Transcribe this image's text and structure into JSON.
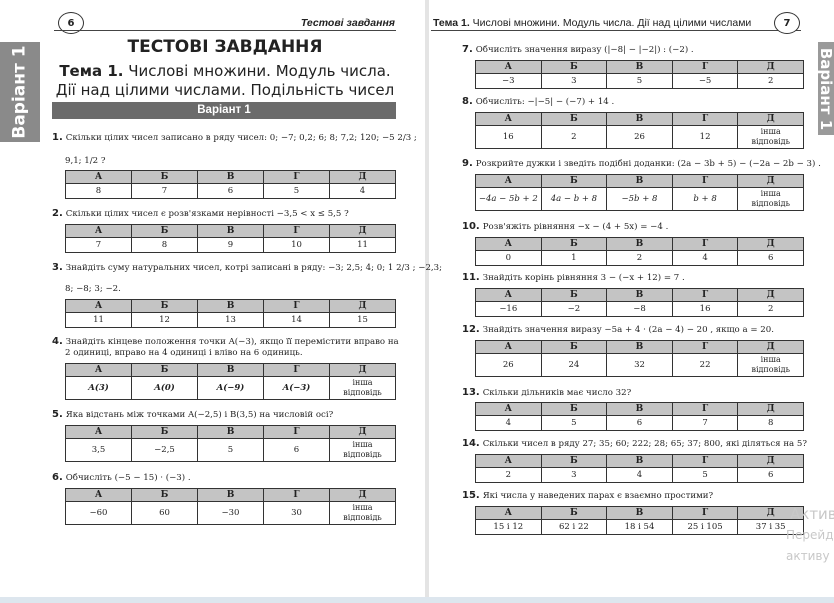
{
  "left_page": {
    "page_number": "6",
    "running_header": "Тестові завдання",
    "side_tab": "Варіант 1",
    "main_title": "ТЕСТОВІ ЗАВДАННЯ",
    "topic_bold": "Тема 1.",
    "topic_line1": " Числові множини. Модуль числа.",
    "topic_line2": "Дії над цілими числами. Подільність чисел",
    "variant_bar": "Варіант 1"
  },
  "right_page": {
    "page_number": "7",
    "running_header_bold": "Тема 1.",
    "running_header": " Числові множини. Модуль числа. Дії над цілими числами",
    "side_tab": "Варіант 1"
  },
  "option_headers": [
    "А",
    "Б",
    "В",
    "Г",
    "Д"
  ],
  "questions": [
    {
      "num": "1.",
      "text": "Скільки цілих чисел записано в ряду чисел: 0; −7; 0,2; 6;  8;  7,2;  120;  −5 2/3 ;",
      "text2": "9,1;  1/2 ?",
      "options": [
        "8",
        "7",
        "6",
        "5",
        "4"
      ]
    },
    {
      "num": "2.",
      "text": "Скільки цілих чисел є розв'язками нерівності  −3,5 < x ≤ 5,5 ?",
      "options": [
        "7",
        "8",
        "9",
        "10",
        "11"
      ]
    },
    {
      "num": "3.",
      "text": "Знайдіть суму натуральних чисел, котрі записані в ряду: −3; 2,5; 4; 0; 1 2/3 ; −2,3;",
      "text2": "8; −8; 3; −2.",
      "options": [
        "11",
        "12",
        "13",
        "14",
        "15"
      ]
    },
    {
      "num": "4.",
      "text": "Знайдіть кінцеве положення точки A(−3), якщо її перемістити вправо на",
      "text2": "2 одиниці, вправо на 4 одиниці і вліво на 6 одиниць.",
      "options": [
        "A(3)",
        "A(0)",
        "A(−9)",
        "A(−3)",
        "інша відповідь"
      ]
    },
    {
      "num": "5.",
      "text": "Яка відстань між точками  A(−2,5) і B(3,5) на числовій осі?",
      "options": [
        "3,5",
        "−2,5",
        "5",
        "6",
        "інша відповідь"
      ]
    },
    {
      "num": "6.",
      "text": "Обчисліть  (−5 − 15) · (−3) .",
      "options": [
        "−60",
        "60",
        "−30",
        "30",
        "інша відповідь"
      ]
    },
    {
      "num": "7.",
      "text": "Обчисліть значення виразу  (|−8| − |−2|) : (−2) .",
      "options": [
        "−3",
        "3",
        "5",
        "−5",
        "2"
      ]
    },
    {
      "num": "8.",
      "text": "Обчисліть:  −|−5| − (−7) + 14 .",
      "options": [
        "16",
        "2",
        "26",
        "12",
        "інша відповідь"
      ]
    },
    {
      "num": "9.",
      "text": "Розкрийте дужки і зведіть подібні доданки:  (2a − 3b + 5) − (−2a − 2b − 3) .",
      "options": [
        "−4a − 5b + 2",
        "4a − b + 8",
        "−5b + 8",
        "b + 8",
        "інша відповідь"
      ]
    },
    {
      "num": "10.",
      "text": "Розв'яжіть рівняння  −x − (4 + 5x) = −4 .",
      "options": [
        "0",
        "1",
        "2",
        "4",
        "6"
      ]
    },
    {
      "num": "11.",
      "text": "Знайдіть корінь рівняння  3 − (−x + 12) = 7 .",
      "options": [
        "−16",
        "−2",
        "−8",
        "16",
        "2"
      ]
    },
    {
      "num": "12.",
      "text": "Знайдіть значення виразу  −5a + 4 · (2a − 4) − 20 , якщо a = 20.",
      "options": [
        "26",
        "24",
        "32",
        "22",
        "інша відповідь"
      ]
    },
    {
      "num": "13.",
      "text": "Скільки дільників має число 32?",
      "options": [
        "4",
        "5",
        "6",
        "7",
        "8"
      ]
    },
    {
      "num": "14.",
      "text": "Скільки чисел в ряду 27; 35; 60; 222; 28; 65; 37; 800, які діляться на 5?",
      "options": [
        "2",
        "3",
        "4",
        "5",
        "6"
      ]
    },
    {
      "num": "15.",
      "text": "Які числа у наведених парах є взаємно простими?",
      "options": [
        "15 і 12",
        "62 і 22",
        "18 і 54",
        "25 і 105",
        "37 і 35"
      ]
    }
  ],
  "watermark": {
    "line1": "Актив",
    "line2": "Перейд",
    "line3": "активу"
  }
}
